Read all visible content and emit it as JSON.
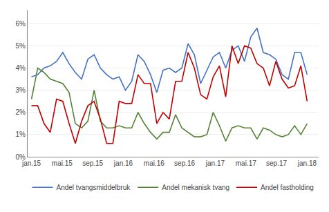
{
  "chart_data": {
    "type": "line",
    "x": [
      0,
      0.8181818182,
      1.6363636364,
      2.4545454545,
      3.2727272727,
      4.0909090909,
      4.9090909091,
      5.7272727273,
      6.5454545455,
      7.3636363636,
      8.1818181818,
      9,
      9.8181818182,
      10.6363636364,
      11.4545454545,
      12.2727272727,
      13.0909090909,
      13.9090909091,
      14.7272727273,
      15.5454545455,
      16.3636363636,
      17.1818181818,
      18,
      18.8181818182,
      19.6363636364,
      20.4545454545,
      21.2727272727,
      22.0909090909,
      22.9090909091,
      23.7272727273,
      24.5454545455,
      25.3636363636,
      26.1818181818,
      27,
      27.8181818182,
      28.6363636364,
      29.4545454545,
      30.2727272727,
      31.0909090909,
      31.9090909091,
      32.7272727273,
      33.5454545455,
      34.3636363636,
      35.1818181818,
      36
    ],
    "xlim": [
      -0.5,
      37.5
    ],
    "xticks": [
      {
        "value": 0,
        "label": "jan.15"
      },
      {
        "value": 4,
        "label": "mai.15"
      },
      {
        "value": 8,
        "label": "sep.15"
      },
      {
        "value": 12,
        "label": "jan.16"
      },
      {
        "value": 16,
        "label": "mai.16"
      },
      {
        "value": 20,
        "label": "sep.16"
      },
      {
        "value": 24,
        "label": "jan.17"
      },
      {
        "value": 28,
        "label": "mai.17"
      },
      {
        "value": 32,
        "label": "sep.17"
      },
      {
        "value": 36,
        "label": "jan.18"
      }
    ],
    "ylim": [
      0.0,
      0.066
    ],
    "yticks": [
      {
        "value": 0.0,
        "label": "0%"
      },
      {
        "value": 0.01,
        "label": "1%"
      },
      {
        "value": 0.02,
        "label": "2%"
      },
      {
        "value": 0.03,
        "label": "3%"
      },
      {
        "value": 0.04,
        "label": "4%"
      },
      {
        "value": 0.05,
        "label": "5%"
      },
      {
        "value": 0.06,
        "label": "6%"
      }
    ],
    "grid": "y",
    "legend": "bottom",
    "series": [
      {
        "name": "Andel tvangsmiddelbruk",
        "color": "#4472C4",
        "values": [
          0.036,
          0.037,
          0.04,
          0.041,
          0.043,
          0.047,
          0.042,
          0.038,
          0.035,
          0.044,
          0.046,
          0.04,
          0.037,
          0.035,
          0.036,
          0.03,
          0.034,
          0.046,
          0.043,
          0.037,
          0.029,
          0.039,
          0.04,
          0.038,
          0.04,
          0.051,
          0.046,
          0.033,
          0.039,
          0.045,
          0.047,
          0.04,
          0.048,
          0.05,
          0.043,
          0.054,
          0.058,
          0.047,
          0.046,
          0.044,
          0.037,
          0.035,
          0.047,
          0.047,
          0.037
        ]
      },
      {
        "name": "Andel mekanisk tvang",
        "color": "#548235",
        "values": [
          0.026,
          0.04,
          0.038,
          0.035,
          0.034,
          0.033,
          0.029,
          0.015,
          0.013,
          0.016,
          0.03,
          0.016,
          0.013,
          0.013,
          0.014,
          0.013,
          0.013,
          0.02,
          0.015,
          0.011,
          0.008,
          0.011,
          0.011,
          0.019,
          0.013,
          0.011,
          0.009,
          0.009,
          0.01,
          0.02,
          0.014,
          0.007,
          0.013,
          0.014,
          0.013,
          0.013,
          0.008,
          0.013,
          0.012,
          0.01,
          0.009,
          0.01,
          0.014,
          0.01,
          0.015
        ]
      },
      {
        "name": "Andel fastholding",
        "color": "#C00000",
        "values": [
          0.023,
          0.023,
          0.015,
          0.011,
          0.026,
          0.025,
          0.015,
          0.006,
          0.016,
          0.023,
          0.025,
          0.017,
          0.006,
          0.006,
          0.025,
          0.024,
          0.024,
          0.037,
          0.033,
          0.033,
          0.015,
          0.02,
          0.017,
          0.034,
          0.034,
          0.047,
          0.04,
          0.028,
          0.026,
          0.036,
          0.041,
          0.027,
          0.05,
          0.042,
          0.05,
          0.049,
          0.042,
          0.04,
          0.032,
          0.043,
          0.035,
          0.031,
          0.032,
          0.041,
          0.025
        ]
      }
    ]
  }
}
